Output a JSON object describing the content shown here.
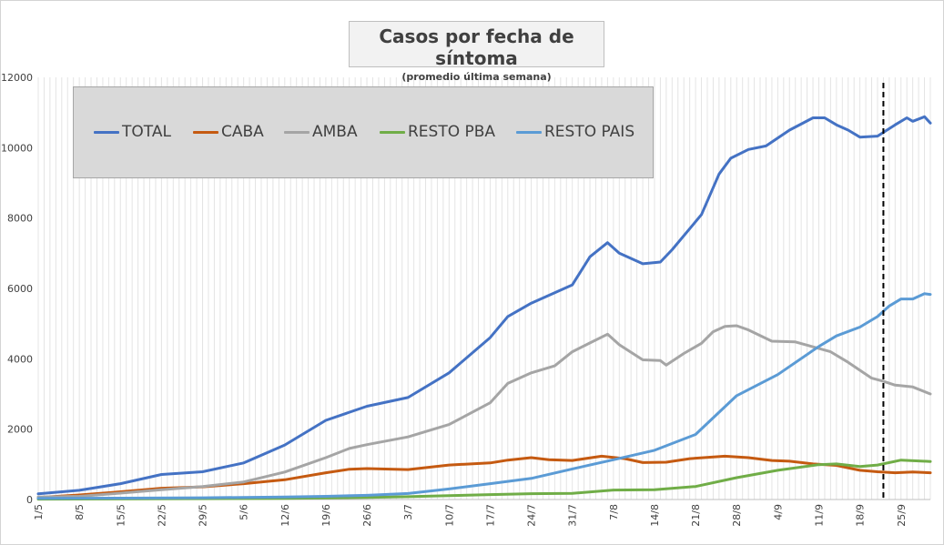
{
  "chart_data": {
    "type": "line",
    "title": "Casos por fecha de síntoma",
    "subtitle": "(promedio última semana)",
    "x_start": "1/5",
    "x_end": "30/9",
    "x_tick_labels": [
      "1/5",
      "8/5",
      "15/5",
      "22/5",
      "29/5",
      "5/6",
      "12/6",
      "19/6",
      "26/6",
      "3/7",
      "10/7",
      "17/7",
      "24/7",
      "31/7",
      "7/8",
      "14/8",
      "21/8",
      "28/8",
      "4/9",
      "11/9",
      "18/9",
      "25/9"
    ],
    "y_ticks": [
      0,
      2000,
      4000,
      6000,
      8000,
      10000,
      12000
    ],
    "ylim": [
      0,
      12000
    ],
    "grid": "vertical",
    "legend_position": "top-left",
    "reference_line": {
      "x": "22/9",
      "style": "dashed"
    },
    "series": [
      {
        "name": "TOTAL",
        "color": "#4472c4",
        "points": [
          [
            "1/5",
            160
          ],
          [
            "8/5",
            260
          ],
          [
            "15/5",
            450
          ],
          [
            "22/5",
            710
          ],
          [
            "29/5",
            790
          ],
          [
            "5/6",
            1040
          ],
          [
            "12/6",
            1550
          ],
          [
            "19/6",
            2250
          ],
          [
            "26/6",
            2650
          ],
          [
            "3/7",
            2900
          ],
          [
            "10/7",
            3600
          ],
          [
            "17/7",
            4600
          ],
          [
            "20/7",
            5200
          ],
          [
            "24/7",
            5580
          ],
          [
            "31/7",
            6100
          ],
          [
            "3/8",
            6900
          ],
          [
            "6/8",
            7300
          ],
          [
            "8/8",
            7000
          ],
          [
            "12/8",
            6700
          ],
          [
            "15/8",
            6750
          ],
          [
            "17/8",
            7100
          ],
          [
            "20/8",
            7700
          ],
          [
            "22/8",
            8100
          ],
          [
            "25/8",
            9250
          ],
          [
            "27/8",
            9700
          ],
          [
            "30/8",
            9950
          ],
          [
            "2/9",
            10050
          ],
          [
            "6/9",
            10500
          ],
          [
            "10/9",
            10850
          ],
          [
            "12/9",
            10850
          ],
          [
            "14/9",
            10650
          ],
          [
            "16/9",
            10500
          ],
          [
            "18/9",
            10300
          ],
          [
            "21/9",
            10330
          ],
          [
            "24/9",
            10650
          ],
          [
            "26/9",
            10850
          ],
          [
            "27/9",
            10750
          ],
          [
            "29/9",
            10880
          ],
          [
            "30/9",
            10700
          ]
        ]
      },
      {
        "name": "CABA",
        "color": "#c55a11",
        "points": [
          [
            "1/5",
            60
          ],
          [
            "8/5",
            130
          ],
          [
            "15/5",
            220
          ],
          [
            "22/5",
            320
          ],
          [
            "29/5",
            360
          ],
          [
            "5/6",
            450
          ],
          [
            "12/6",
            560
          ],
          [
            "19/6",
            760
          ],
          [
            "23/6",
            860
          ],
          [
            "26/6",
            880
          ],
          [
            "3/7",
            850
          ],
          [
            "10/7",
            980
          ],
          [
            "17/7",
            1040
          ],
          [
            "20/7",
            1120
          ],
          [
            "24/7",
            1190
          ],
          [
            "27/7",
            1130
          ],
          [
            "31/7",
            1110
          ],
          [
            "5/8",
            1230
          ],
          [
            "9/8",
            1160
          ],
          [
            "12/8",
            1050
          ],
          [
            "16/8",
            1060
          ],
          [
            "20/8",
            1160
          ],
          [
            "26/8",
            1230
          ],
          [
            "30/8",
            1190
          ],
          [
            "3/9",
            1110
          ],
          [
            "6/9",
            1090
          ],
          [
            "10/9",
            1010
          ],
          [
            "14/9",
            970
          ],
          [
            "18/9",
            830
          ],
          [
            "21/9",
            790
          ],
          [
            "24/9",
            760
          ],
          [
            "27/9",
            780
          ],
          [
            "30/9",
            760
          ]
        ]
      },
      {
        "name": "AMBA",
        "color": "#a5a5a5",
        "points": [
          [
            "1/5",
            70
          ],
          [
            "8/5",
            90
          ],
          [
            "15/5",
            180
          ],
          [
            "22/5",
            280
          ],
          [
            "29/5",
            370
          ],
          [
            "5/6",
            500
          ],
          [
            "12/6",
            780
          ],
          [
            "19/6",
            1190
          ],
          [
            "23/6",
            1450
          ],
          [
            "26/6",
            1560
          ],
          [
            "3/7",
            1780
          ],
          [
            "10/7",
            2130
          ],
          [
            "17/7",
            2750
          ],
          [
            "20/7",
            3300
          ],
          [
            "24/7",
            3600
          ],
          [
            "28/7",
            3800
          ],
          [
            "31/7",
            4200
          ],
          [
            "3/8",
            4450
          ],
          [
            "6/8",
            4700
          ],
          [
            "8/8",
            4400
          ],
          [
            "12/8",
            3970
          ],
          [
            "15/8",
            3950
          ],
          [
            "16/8",
            3820
          ],
          [
            "19/8",
            4150
          ],
          [
            "22/8",
            4440
          ],
          [
            "24/8",
            4770
          ],
          [
            "26/8",
            4920
          ],
          [
            "28/8",
            4940
          ],
          [
            "30/8",
            4820
          ],
          [
            "3/9",
            4500
          ],
          [
            "7/9",
            4480
          ],
          [
            "10/9",
            4340
          ],
          [
            "13/9",
            4200
          ],
          [
            "16/9",
            3900
          ],
          [
            "20/9",
            3450
          ],
          [
            "22/9",
            3360
          ],
          [
            "24/9",
            3250
          ],
          [
            "27/9",
            3200
          ],
          [
            "30/9",
            3000
          ]
        ]
      },
      {
        "name": "RESTO PBA",
        "color": "#70ad47",
        "points": [
          [
            "1/5",
            10
          ],
          [
            "12/6",
            30
          ],
          [
            "26/6",
            60
          ],
          [
            "3/7",
            80
          ],
          [
            "10/7",
            110
          ],
          [
            "17/7",
            140
          ],
          [
            "24/7",
            165
          ],
          [
            "31/7",
            175
          ],
          [
            "7/8",
            270
          ],
          [
            "14/8",
            280
          ],
          [
            "21/8",
            370
          ],
          [
            "28/8",
            620
          ],
          [
            "4/9",
            830
          ],
          [
            "11/9",
            990
          ],
          [
            "14/9",
            1010
          ],
          [
            "18/9",
            940
          ],
          [
            "21/9",
            980
          ],
          [
            "25/9",
            1120
          ],
          [
            "30/9",
            1080
          ]
        ]
      },
      {
        "name": "RESTO PAIS",
        "color": "#5b9bd5",
        "points": [
          [
            "1/5",
            30
          ],
          [
            "15/5",
            40
          ],
          [
            "29/5",
            50
          ],
          [
            "12/6",
            70
          ],
          [
            "19/6",
            90
          ],
          [
            "26/6",
            120
          ],
          [
            "3/7",
            170
          ],
          [
            "10/7",
            300
          ],
          [
            "17/7",
            450
          ],
          [
            "24/7",
            600
          ],
          [
            "31/7",
            870
          ],
          [
            "7/8",
            1130
          ],
          [
            "14/8",
            1400
          ],
          [
            "21/8",
            1850
          ],
          [
            "28/8",
            2950
          ],
          [
            "4/9",
            3550
          ],
          [
            "11/9",
            4350
          ],
          [
            "14/9",
            4650
          ],
          [
            "18/9",
            4900
          ],
          [
            "21/9",
            5200
          ],
          [
            "23/9",
            5500
          ],
          [
            "25/9",
            5700
          ],
          [
            "27/9",
            5700
          ],
          [
            "29/9",
            5850
          ],
          [
            "30/9",
            5830
          ]
        ]
      }
    ]
  }
}
